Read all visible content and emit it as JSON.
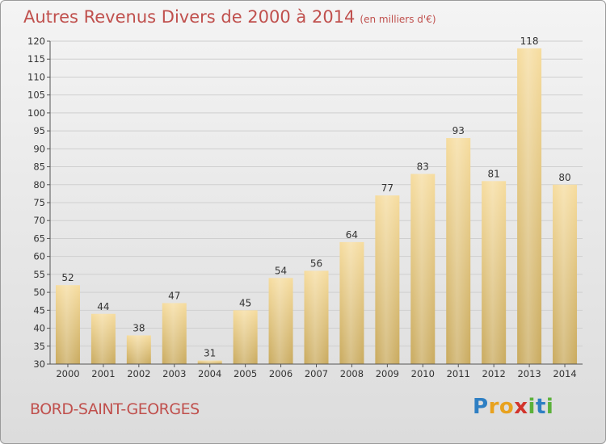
{
  "title": "Autres Revenus Divers de 2000 à 2014",
  "unit": "(en milliers d'€)",
  "city": "BORD-SAINT-GEORGES",
  "logo": [
    "P",
    "r",
    "o",
    "x",
    "i",
    "t",
    "i"
  ],
  "colors": {
    "accent": "#c0504d",
    "bar_top": "#f6dc9e",
    "bar_bottom": "#c9aa5e"
  },
  "chart_data": {
    "type": "bar",
    "categories": [
      "2000",
      "2001",
      "2002",
      "2003",
      "2004",
      "2005",
      "2006",
      "2007",
      "2008",
      "2009",
      "2010",
      "2011",
      "2012",
      "2013",
      "2014"
    ],
    "values": [
      52,
      44,
      38,
      47,
      31,
      45,
      54,
      56,
      64,
      77,
      83,
      93,
      81,
      118,
      80
    ],
    "ylim": [
      30,
      120
    ],
    "yticks": [
      30,
      35,
      40,
      45,
      50,
      55,
      60,
      65,
      70,
      75,
      80,
      85,
      90,
      95,
      100,
      105,
      110,
      115,
      120
    ],
    "grid": true,
    "legend": "none"
  }
}
